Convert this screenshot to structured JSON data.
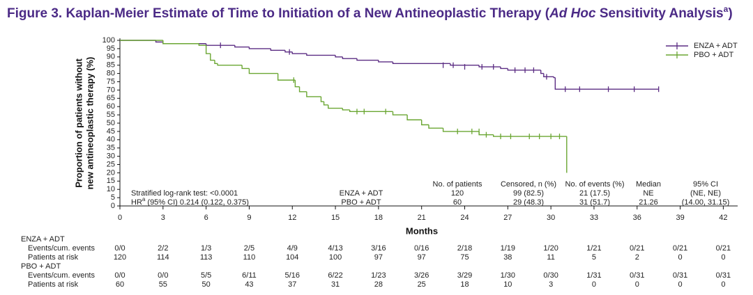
{
  "chart_data": {
    "type": "step",
    "title_parts": [
      "Figure 3. Kaplan-Meier Estimate of Time to Initiation of a New Antineoplastic Therapy (",
      "Ad Hoc",
      " Sensitivity Analysis",
      "a",
      ")"
    ],
    "y_label_lines": [
      "Proportion of patients without",
      "new antineoplastic therapy (%)"
    ],
    "x_label": "Months",
    "xlim": [
      0,
      43
    ],
    "ylim": [
      0,
      100
    ],
    "xticks": [
      0,
      3,
      6,
      9,
      12,
      15,
      18,
      21,
      24,
      27,
      30,
      33,
      36,
      39,
      42
    ],
    "yticks": [
      0,
      5,
      10,
      15,
      20,
      25,
      30,
      35,
      40,
      45,
      50,
      55,
      60,
      65,
      70,
      75,
      80,
      85,
      90,
      95,
      100
    ],
    "legend": "upper right",
    "series": [
      {
        "name": "ENZA + ADT",
        "color": "#5b2c83",
        "x": [
          0,
          2.5,
          3,
          6,
          8,
          9,
          10.5,
          11.5,
          12,
          13,
          15,
          15.5,
          16.5,
          18,
          19,
          23,
          25,
          26.5,
          27,
          29.3,
          29.5,
          30.2,
          30.3,
          37.5
        ],
        "y": [
          100,
          99,
          98,
          97,
          96,
          95,
          94,
          93,
          92,
          91,
          90,
          89,
          88,
          87,
          86,
          85,
          84,
          83,
          82,
          80,
          78,
          77.5,
          70.5,
          70.5
        ],
        "censored": {
          "x": [
            7,
            11.8,
            22.5,
            23.2,
            24,
            25.2,
            26,
            27.5,
            28.2,
            28.8,
            29.7,
            31,
            32,
            34,
            35.8,
            37.5
          ],
          "y": [
            97,
            93,
            85,
            85,
            84,
            84,
            84,
            82,
            82,
            82,
            78,
            70.5,
            70.5,
            70.5,
            70.5,
            70.5
          ]
        }
      },
      {
        "name": "PBO + ADT",
        "color": "#6aa632",
        "x": [
          0,
          3,
          5.5,
          6,
          6.3,
          6.6,
          6.8,
          8.5,
          9,
          11,
          12.2,
          12.5,
          13,
          14,
          14.2,
          14.5,
          15.5,
          16,
          19,
          20,
          21,
          21.5,
          22.5,
          25,
          26,
          31.1
        ],
        "y": [
          100,
          98,
          97,
          92,
          88,
          86,
          85,
          83,
          80,
          76,
          72,
          69,
          66,
          63,
          61,
          59,
          58,
          57,
          55,
          52,
          49,
          47,
          45,
          43,
          42,
          20
        ],
        "censored": {
          "x": [
            12.1,
            16.5,
            17,
            18.5,
            23.5,
            24.5,
            25,
            25.5,
            26.5,
            27.2,
            28.5,
            29.2,
            30,
            30.6
          ],
          "y": [
            76,
            57,
            57,
            57,
            45,
            45,
            45,
            43,
            42,
            42,
            42,
            42,
            42,
            42
          ]
        }
      }
    ],
    "stats": {
      "logrank": "Stratified log-rank test: <0.0001",
      "hr_parts": [
        "HR",
        "a",
        " (95% CI) 0.214 (0.122, 0.375)"
      ],
      "headers": [
        "No. of patients",
        "Censored, n (%)",
        "No. of events (%)",
        "Median",
        "95% CI"
      ],
      "rows": [
        {
          "name": "ENZA + ADT",
          "cells": [
            "120",
            "99 (82.5)",
            "21 (17.5)",
            "NE",
            "(NE, NE)"
          ]
        },
        {
          "name": "PBO + ADT",
          "cells": [
            "60",
            "29 (48.3)",
            "31 (51.7)",
            "21.26",
            "(14.00, 31.15)"
          ]
        }
      ]
    },
    "risk_table": [
      {
        "group": "ENZA + ADT",
        "rows": [
          {
            "label": "Events/cum. events",
            "values": [
              "0/0",
              "2/2",
              "1/3",
              "2/5",
              "4/9",
              "4/13",
              "3/16",
              "0/16",
              "2/18",
              "1/19",
              "1/20",
              "1/21",
              "0/21",
              "0/21",
              "0/21"
            ]
          },
          {
            "label": "Patients at risk",
            "values": [
              120,
              114,
              113,
              110,
              104,
              100,
              97,
              97,
              75,
              38,
              11,
              5,
              2,
              0,
              0
            ]
          }
        ]
      },
      {
        "group": "PBO + ADT",
        "rows": [
          {
            "label": "Events/cum. events",
            "values": [
              "0/0",
              "0/0",
              "5/5",
              "6/11",
              "5/16",
              "6/22",
              "1/23",
              "3/26",
              "3/29",
              "1/30",
              "0/30",
              "1/31",
              "0/31",
              "0/31",
              "0/31"
            ]
          },
          {
            "label": "Patients at risk",
            "values": [
              60,
              55,
              50,
              43,
              37,
              31,
              28,
              25,
              18,
              10,
              3,
              0,
              0,
              0,
              0
            ]
          }
        ]
      }
    ]
  }
}
